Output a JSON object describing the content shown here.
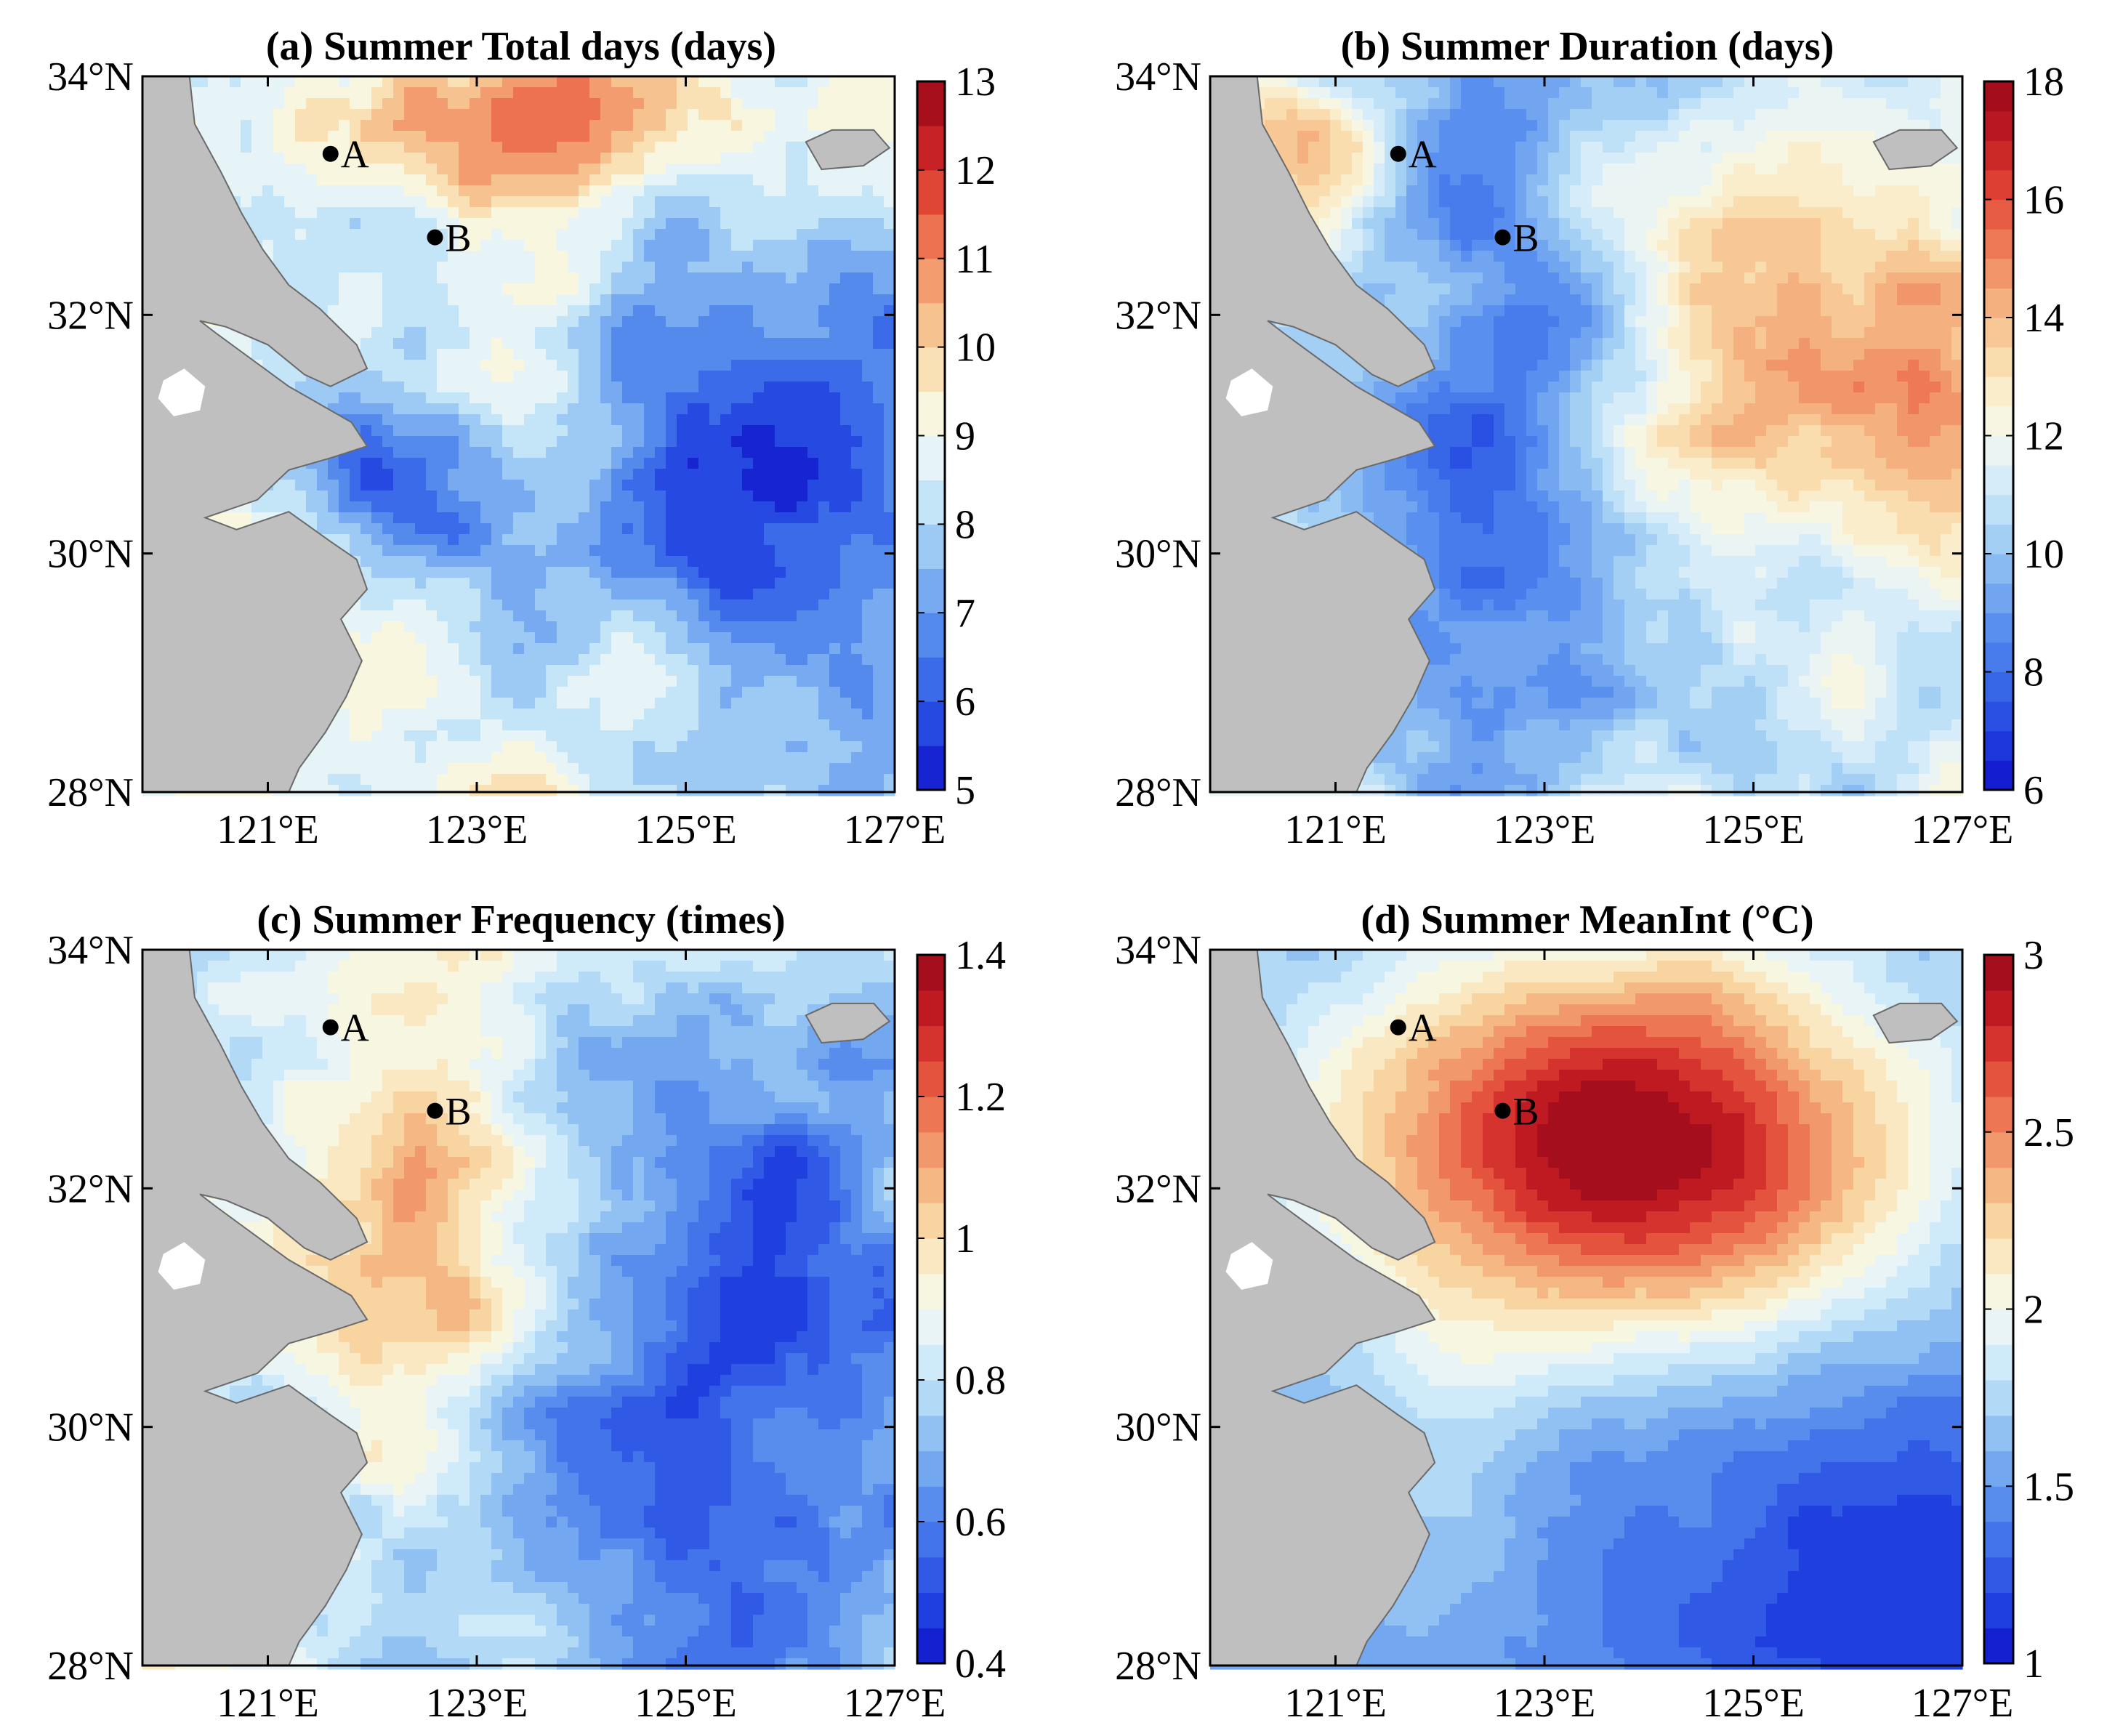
{
  "figure": {
    "panels": [
      {
        "key": "a",
        "title": "(a) Summer Total days (days)",
        "lat_labels": [
          "34°N",
          "32°N",
          "30°N",
          "28°N"
        ],
        "lon_labels": [
          "121°E",
          "123°E",
          "125°E",
          "127°E"
        ],
        "colorbar": {
          "min": 5,
          "max": 13,
          "ticks": [
            "5",
            "6",
            "7",
            "8",
            "9",
            "10",
            "11",
            "12",
            "13"
          ],
          "tick_values": [
            5,
            6,
            7,
            8,
            9,
            10,
            11,
            12,
            13
          ],
          "levels": 16
        },
        "field": "total",
        "points": [
          {
            "name": "A"
          },
          {
            "name": "B"
          }
        ]
      },
      {
        "key": "b",
        "title": "(b) Summer Duration (days)",
        "lat_labels": [
          "34°N",
          "32°N",
          "30°N",
          "28°N"
        ],
        "lon_labels": [
          "121°E",
          "123°E",
          "125°E",
          "127°E"
        ],
        "colorbar": {
          "min": 6,
          "max": 18,
          "ticks": [
            "6",
            "8",
            "10",
            "12",
            "14",
            "16",
            "18"
          ],
          "tick_values": [
            6,
            8,
            10,
            12,
            14,
            16,
            18
          ],
          "levels": 24
        },
        "field": "duration",
        "points": [
          {
            "name": "A"
          },
          {
            "name": "B"
          }
        ]
      },
      {
        "key": "c",
        "title": "(c) Summer Frequency (times)",
        "lat_labels": [
          "34°N",
          "32°N",
          "30°N",
          "28°N"
        ],
        "lon_labels": [
          "121°E",
          "123°E",
          "125°E",
          "127°E"
        ],
        "colorbar": {
          "min": 0.4,
          "max": 1.4,
          "ticks": [
            "0.4",
            "0.6",
            "0.8",
            "1",
            "1.2",
            "1.4"
          ],
          "tick_values": [
            0.4,
            0.6,
            0.8,
            1.0,
            1.2,
            1.4
          ],
          "levels": 20
        },
        "field": "frequency",
        "points": [
          {
            "name": "A"
          },
          {
            "name": "B"
          }
        ]
      },
      {
        "key": "d",
        "title": "(d) Summer MeanInt (°C)",
        "lat_labels": [
          "34°N",
          "32°N",
          "30°N",
          "28°N"
        ],
        "lon_labels": [
          "121°E",
          "123°E",
          "125°E",
          "127°E"
        ],
        "colorbar": {
          "min": 1,
          "max": 3,
          "ticks": [
            "1",
            "1.5",
            "2",
            "2.5",
            "3"
          ],
          "tick_values": [
            1,
            1.5,
            2,
            2.5,
            3
          ],
          "levels": 20
        },
        "field": "meanint",
        "points": [
          {
            "name": "A"
          },
          {
            "name": "B"
          }
        ]
      }
    ],
    "colormap": [
      "#1010c8",
      "#2040e0",
      "#3a6ae8",
      "#5a90ee",
      "#86b8f2",
      "#b8def6",
      "#e4f4fa",
      "#fbf6dc",
      "#f9d9a6",
      "#f4ae7c",
      "#ee7a58",
      "#e04434",
      "#c01a22",
      "#98081a"
    ],
    "land_color": "#bfbfbf",
    "lake_color": "#ffffff"
  }
}
